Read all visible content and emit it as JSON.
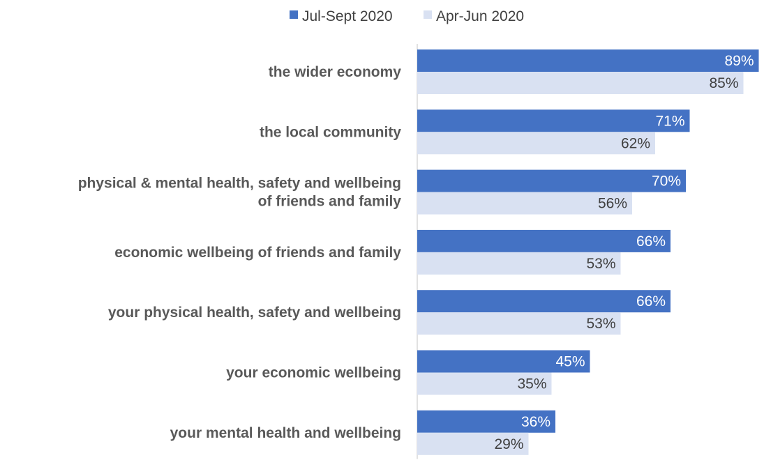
{
  "chart_data": {
    "type": "bar",
    "orientation": "horizontal",
    "categories": [
      [
        "the wider economy"
      ],
      [
        "the local community"
      ],
      [
        "physical & mental health, safety and wellbeing",
        "of friends and family"
      ],
      [
        "economic wellbeing of friends and family"
      ],
      [
        "your physical health, safety and wellbeing"
      ],
      [
        "your economic wellbeing"
      ],
      [
        "your mental health and wellbeing"
      ]
    ],
    "series": [
      {
        "name": "Jul-Sept 2020",
        "color": "#4472C4",
        "label_color": "#ffffff",
        "values": [
          89,
          71,
          70,
          66,
          66,
          45,
          36
        ],
        "labels": [
          "89%",
          "71%",
          "70%",
          "66%",
          "66%",
          "45%",
          "36%"
        ]
      },
      {
        "name": "Apr-Jun 2020",
        "color": "#D9E1F2",
        "label_color": "#404040",
        "values": [
          85,
          62,
          56,
          53,
          53,
          35,
          29
        ],
        "labels": [
          "85%",
          "62%",
          "56%",
          "53%",
          "53%",
          "35%",
          "29%"
        ]
      }
    ],
    "xlim": [
      0,
      90
    ],
    "legend_position": "top",
    "grid": false
  }
}
